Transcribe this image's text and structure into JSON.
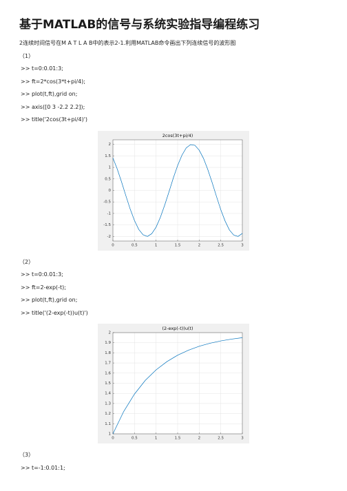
{
  "title": "基于MATLAB的信号与系统实验指导编程练习",
  "intro": "2连续时间信号在M A T L A B中的表示2-1.利用MATLAB命令画出下列连续信号的波形图",
  "sections": [
    {
      "label": "（1）",
      "code": [
        ">> t=0:0.01:3;",
        ">> ft=2*cos(3*t+pi/4);",
        ">> plot(t,ft),grid on;",
        ">> axis([0 3 -2.2 2.2]);",
        ">> title('2cos(3t+pi/4)')"
      ]
    },
    {
      "label": "（2）",
      "code": [
        ">> t=0:0.01:3;",
        ">> ft=2-exp(-t);",
        ">> plot(t,ft),grid on;",
        ">> title('(2-exp(-t))u(t)')"
      ]
    },
    {
      "label": "（3）",
      "code": [
        ">> t=-1:0.01:1;"
      ]
    }
  ],
  "chart_data": [
    {
      "type": "line",
      "title": "2cos(3t+pi/4)",
      "color": "#0072bd",
      "grid": true,
      "x": [
        0,
        0.1,
        0.2,
        0.3,
        0.4,
        0.5,
        0.6,
        0.7,
        0.8,
        0.9,
        1.0,
        1.1,
        1.2,
        1.3,
        1.4,
        1.5,
        1.6,
        1.7,
        1.8,
        1.9,
        2.0,
        2.1,
        2.2,
        2.3,
        2.4,
        2.5,
        2.6,
        2.7,
        2.8,
        2.9,
        3.0
      ],
      "values": [
        1.41,
        0.93,
        0.37,
        -0.23,
        -0.81,
        -1.31,
        -1.7,
        -1.93,
        -2.0,
        -1.88,
        -1.6,
        -1.17,
        -0.64,
        -0.06,
        0.54,
        1.08,
        1.53,
        1.85,
        1.99,
        1.96,
        1.75,
        1.39,
        0.9,
        0.34,
        -0.26,
        -0.84,
        -1.33,
        -1.72,
        -1.94,
        -2.0,
        -1.87
      ],
      "xlim": [
        0,
        3
      ],
      "ylim": [
        -2.2,
        2.2
      ],
      "xticks": [
        0,
        0.5,
        1,
        1.5,
        2,
        2.5,
        3
      ],
      "yticks": [
        -2,
        -1.5,
        -1,
        -0.5,
        0,
        0.5,
        1,
        1.5,
        2
      ]
    },
    {
      "type": "line",
      "title": "(2-exp(-t))u(t)",
      "color": "#0072bd",
      "grid": true,
      "x": [
        0,
        0.25,
        0.5,
        0.75,
        1,
        1.25,
        1.5,
        1.75,
        2,
        2.25,
        2.5,
        2.75,
        3
      ],
      "values": [
        1,
        1.221,
        1.393,
        1.528,
        1.632,
        1.713,
        1.777,
        1.826,
        1.865,
        1.895,
        1.918,
        1.936,
        1.95
      ],
      "xlim": [
        0,
        3
      ],
      "ylim": [
        1,
        2
      ],
      "xticks": [
        0,
        0.5,
        1,
        1.5,
        2,
        2.5,
        3
      ],
      "yticks": [
        1,
        1.1,
        1.2,
        1.3,
        1.4,
        1.5,
        1.6,
        1.7,
        1.8,
        1.9,
        2
      ]
    }
  ]
}
